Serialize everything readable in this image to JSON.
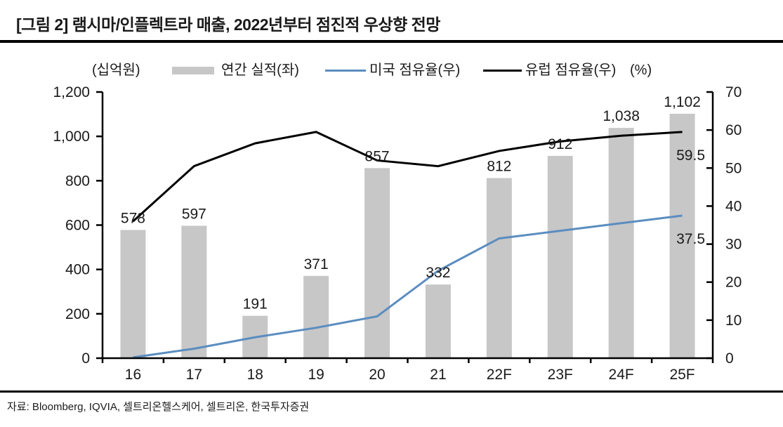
{
  "title": "[그림 2] 램시마/인플렉트라 매출, 2022년부터 점진적 우상향 전망",
  "source": "자료: Bloomberg, IQVIA, 셀트리온헬스케어, 셀트리온, 한국투자증권",
  "legend": {
    "left_unit": "(십억원)",
    "bar_label": "연간 실적(좌)",
    "us_label": "미국 점유율(우)",
    "europe_label": "유럽 점유율(우)",
    "right_unit": "(%)"
  },
  "colors": {
    "bar": "#c7c7c7",
    "us_line": "#5b8dc0",
    "europe_line": "#000000",
    "text": "#1a1a1a",
    "axis": "#000000"
  },
  "chart_data": {
    "type": "bar",
    "subtype": "bar-and-line-combo",
    "title": "램시마/인플렉트라 매출, 2022년부터 점진적 우상향 전망",
    "categories": [
      "16",
      "17",
      "18",
      "19",
      "20",
      "21",
      "22F",
      "23F",
      "24F",
      "25F"
    ],
    "bar_series": {
      "name": "연간 실적(좌)",
      "axis": "left",
      "values": [
        578,
        597,
        191,
        371,
        857,
        332,
        812,
        912,
        1038,
        1102
      ],
      "labels": [
        "578",
        "597",
        "191",
        "371",
        "857",
        "332",
        "812",
        "912",
        "1,038",
        "1,102"
      ]
    },
    "line_series": [
      {
        "name": "미국 점유율(우)",
        "axis": "right",
        "color_key": "us_line",
        "values": [
          0.2,
          2.5,
          5.5,
          8,
          11,
          23,
          31.5,
          33.5,
          35.5,
          37.5
        ],
        "end_label": "37.5"
      },
      {
        "name": "유럽 점유율(우)",
        "axis": "right",
        "color_key": "europe_line",
        "values": [
          36,
          50.5,
          56.5,
          59.5,
          52,
          50.5,
          54.5,
          57,
          58.5,
          59.5
        ],
        "end_label": "59.5"
      }
    ],
    "left_axis": {
      "unit": "(십억원)",
      "min": 0,
      "max": 1200,
      "step": 200,
      "ticks": [
        "0",
        "200",
        "400",
        "600",
        "800",
        "1,000",
        "1,200"
      ]
    },
    "right_axis": {
      "unit": "(%)",
      "min": 0,
      "max": 70,
      "step": 10,
      "ticks": [
        "0",
        "10",
        "20",
        "30",
        "40",
        "50",
        "60",
        "70"
      ]
    },
    "grid": false,
    "legend_position": "top"
  }
}
